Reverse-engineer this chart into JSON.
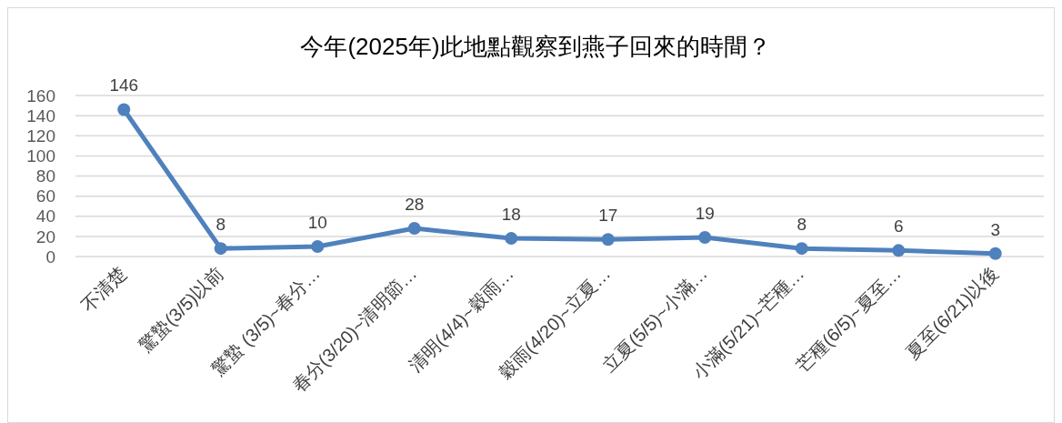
{
  "chart_data": {
    "type": "line",
    "title": "今年(2025年)此地點觀察到燕子回來的時間？",
    "categories": [
      "不清楚",
      "驚蟄(3/5)以前",
      "驚蟄 (3/5)~春分…",
      "春分(3/20)~清明節…",
      "清明(4/4)~穀雨…",
      "穀雨(4/20)~立夏…",
      "立夏(5/5)~小滿…",
      "小滿(5/21)~芒種…",
      "芒種(6/5)~夏至…",
      "夏至(6/21)以後"
    ],
    "series": [
      {
        "color": "#4f81bd",
        "values": [
          146,
          8,
          10,
          28,
          18,
          17,
          19,
          8,
          6,
          3
        ]
      }
    ],
    "ylim": [
      0,
      160
    ],
    "yticks": [
      0,
      20,
      40,
      60,
      80,
      100,
      120,
      140,
      160
    ],
    "grid": "y",
    "marker": "circle",
    "data_labels": true
  }
}
